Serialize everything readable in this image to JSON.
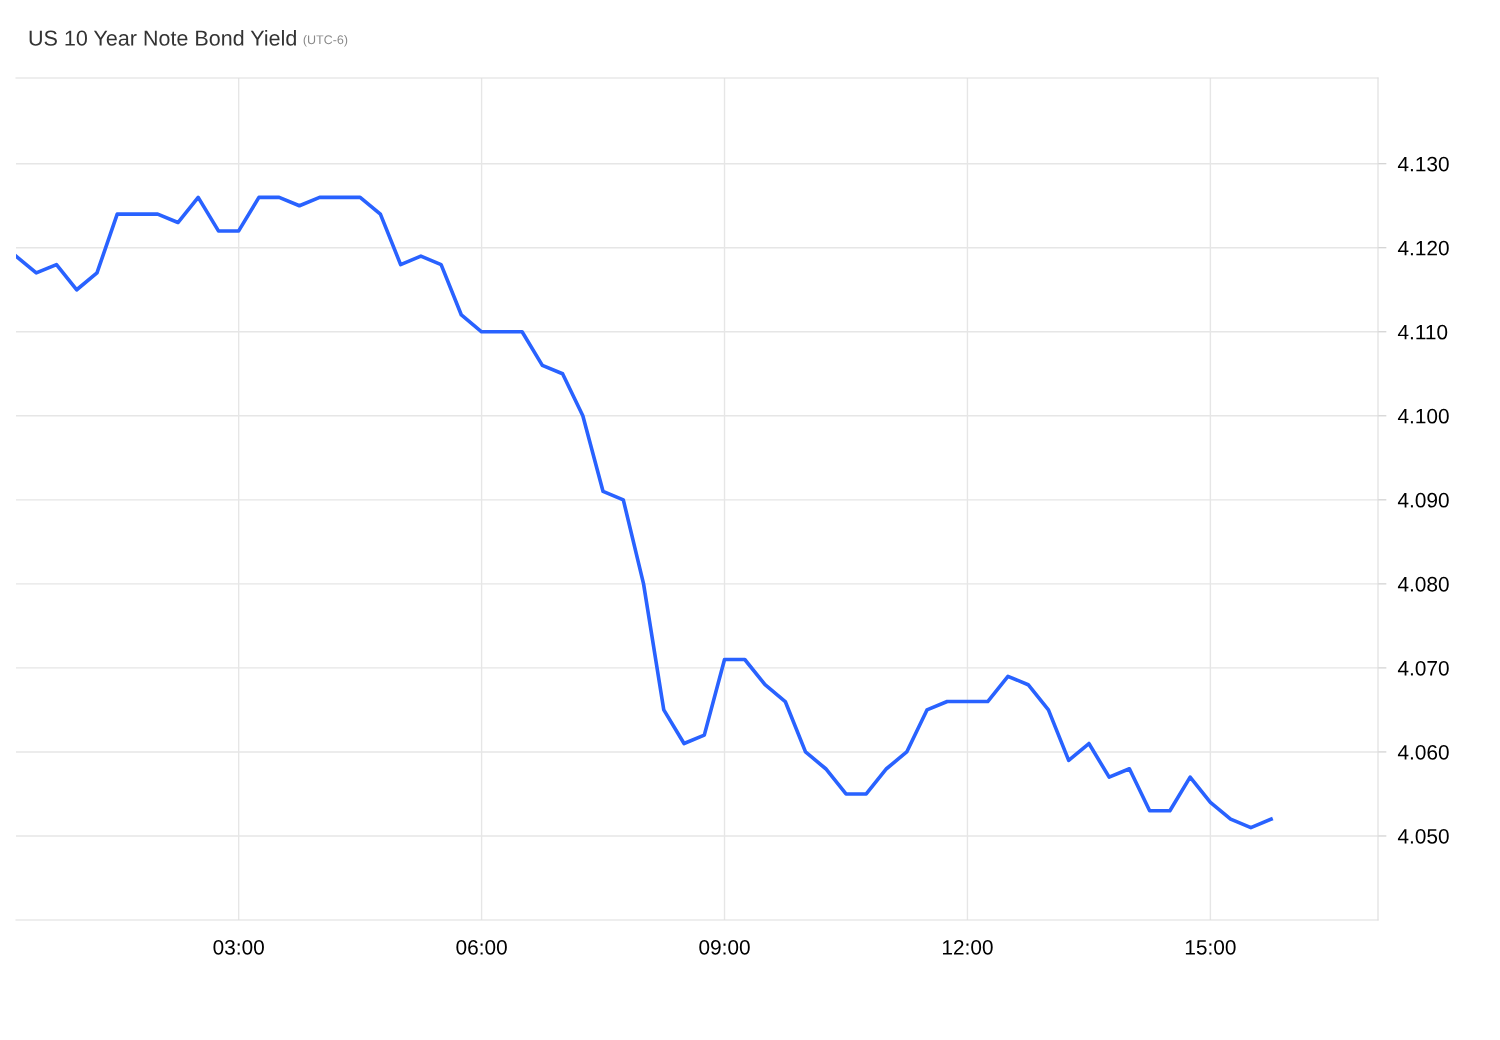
{
  "chart_data": {
    "type": "line",
    "title": "US 10 Year Note Bond Yield",
    "subtitle": "(UTC-6)",
    "x": [
      0.25,
      0.5,
      0.75,
      1,
      1.25,
      1.5,
      1.75,
      2,
      2.25,
      2.5,
      2.75,
      3,
      3.25,
      3.5,
      3.75,
      4,
      4.25,
      4.5,
      4.75,
      5,
      5.25,
      5.5,
      5.75,
      6,
      6.25,
      6.5,
      6.75,
      7,
      7.25,
      7.5,
      7.75,
      8,
      8.25,
      8.5,
      8.75,
      9,
      9.25,
      9.5,
      9.75,
      10,
      10.25,
      10.5,
      10.75,
      11,
      11.25,
      11.5,
      11.75,
      12,
      12.25,
      12.5,
      12.75,
      13,
      13.25,
      13.5,
      13.75,
      14,
      14.25,
      14.5,
      14.75,
      15,
      15.25,
      15.5,
      15.75
    ],
    "series": [
      {
        "color": "#2962ff",
        "values": [
          4.119,
          4.117,
          4.118,
          4.115,
          4.117,
          4.124,
          4.124,
          4.124,
          4.123,
          4.126,
          4.122,
          4.122,
          4.126,
          4.126,
          4.125,
          4.126,
          4.126,
          4.126,
          4.124,
          4.118,
          4.119,
          4.118,
          4.112,
          4.11,
          4.11,
          4.11,
          4.106,
          4.105,
          4.1,
          4.091,
          4.09,
          4.08,
          4.065,
          4.061,
          4.062,
          4.071,
          4.071,
          4.068,
          4.066,
          4.06,
          4.058,
          4.055,
          4.055,
          4.058,
          4.06,
          4.065,
          4.066,
          4.066,
          4.066,
          4.069,
          4.068,
          4.065,
          4.059,
          4.061,
          4.057,
          4.058,
          4.053,
          4.053,
          4.057,
          4.054,
          4.052,
          4.051,
          4.052
        ]
      }
    ],
    "xlim": [
      0.25,
      17.07
    ],
    "xticks": [
      {
        "value": 3,
        "label": "03:00"
      },
      {
        "value": 6,
        "label": "06:00"
      },
      {
        "value": 9,
        "label": "09:00"
      },
      {
        "value": 12,
        "label": "12:00"
      },
      {
        "value": 15,
        "label": "15:00"
      }
    ],
    "ylim": [
      4.04,
      4.1402
    ],
    "yticks": [
      {
        "value": 4.05,
        "label": "4.050"
      },
      {
        "value": 4.06,
        "label": "4.060"
      },
      {
        "value": 4.07,
        "label": "4.070"
      },
      {
        "value": 4.08,
        "label": "4.080"
      },
      {
        "value": 4.09,
        "label": "4.090"
      },
      {
        "value": 4.1,
        "label": "4.100"
      },
      {
        "value": 4.11,
        "label": "4.110"
      },
      {
        "value": 4.12,
        "label": "4.120"
      },
      {
        "value": 4.13,
        "label": "4.130"
      }
    ],
    "grid": true,
    "marker": "none",
    "line_style": "solid"
  }
}
